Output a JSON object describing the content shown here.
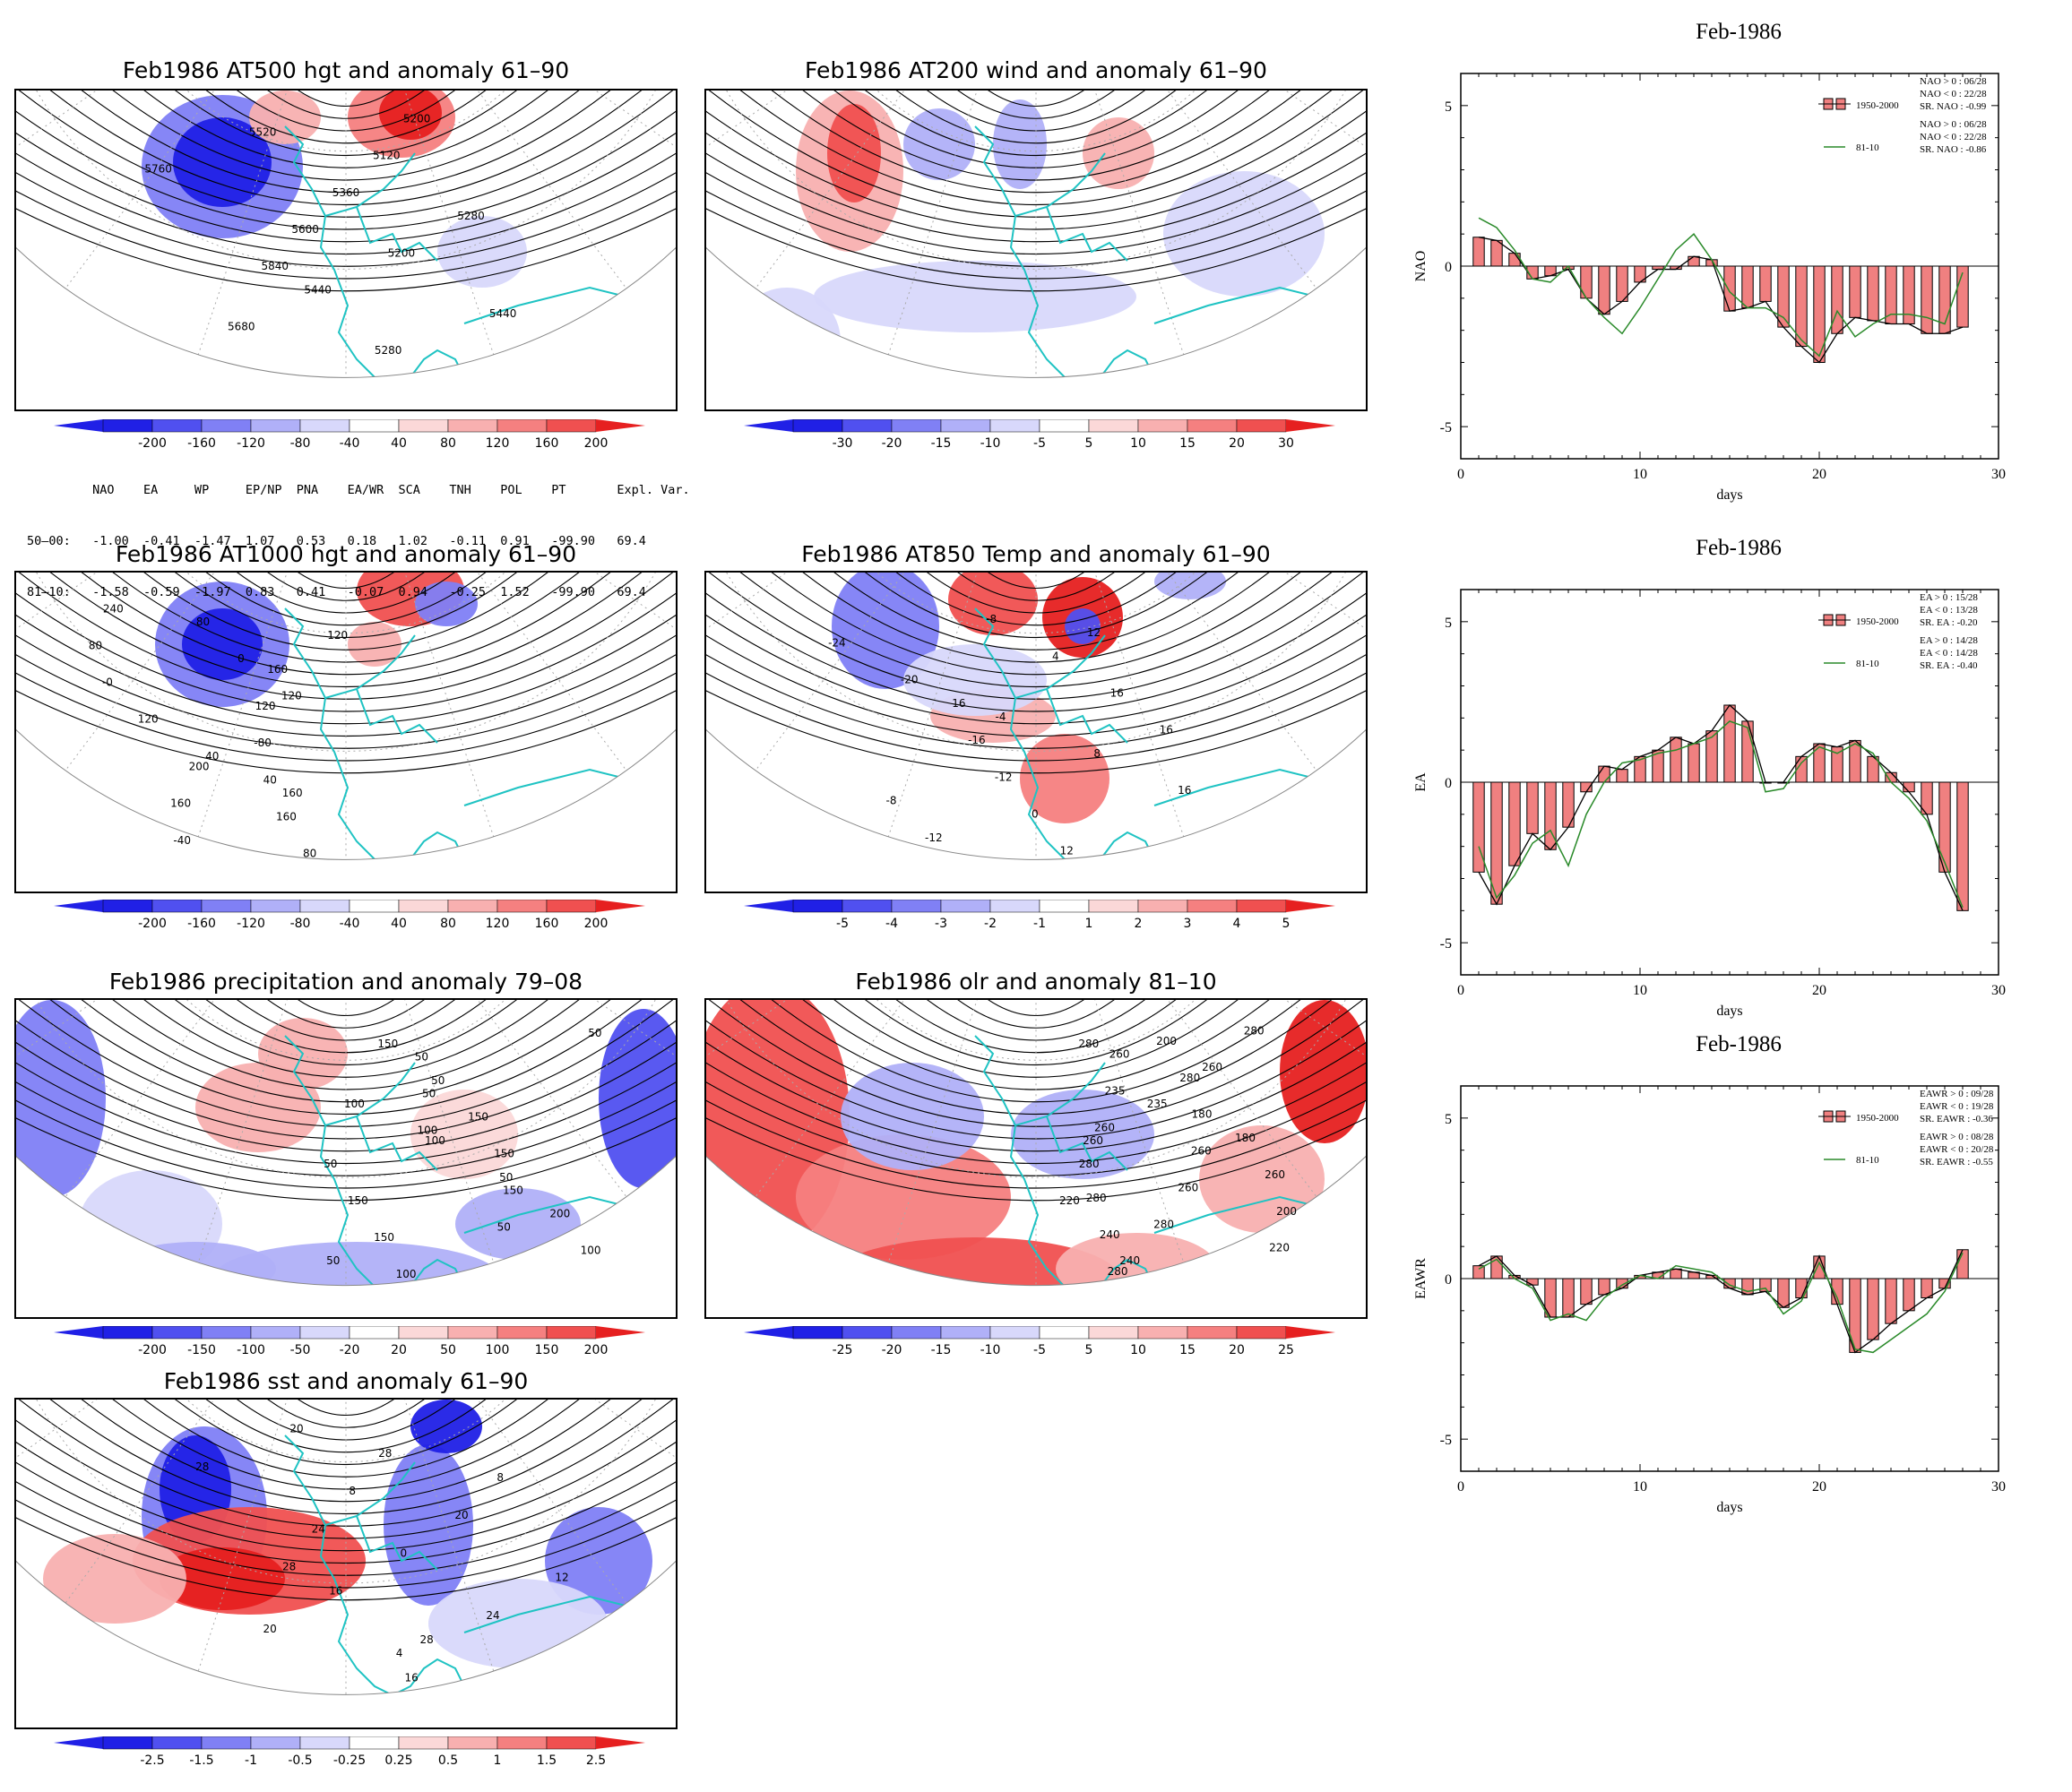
{
  "maps": [
    {
      "id": "m500",
      "title": "Feb1986 AT500 hgt and anomaly 61–90",
      "colorbar": [
        "-200",
        "-160",
        "-120",
        "-80",
        "-40",
        "40",
        "80",
        "120",
        "160",
        "200"
      ],
      "contour_labels": [
        "5200",
        "5280",
        "5440",
        "5120",
        "5200",
        "5280",
        "5360",
        "5440",
        "5520",
        "5600",
        "5680",
        "5760",
        "5840"
      ]
    },
    {
      "id": "m200",
      "title": "Feb1986 AT200 wind and anomaly 61–90",
      "colorbar": [
        "-30",
        "-20",
        "-15",
        "-10",
        "-5",
        "5",
        "10",
        "15",
        "20",
        "30"
      ],
      "contour_labels": []
    },
    {
      "id": "m1000",
      "title": "Feb1986 AT1000 hgt and anomaly 61–90",
      "colorbar": [
        "-200",
        "-160",
        "-120",
        "-80",
        "-40",
        "40",
        "80",
        "120",
        "160",
        "200"
      ],
      "contour_labels": [
        "160",
        "200",
        "240",
        "120",
        "160",
        "80",
        "-80",
        "-40",
        "-0",
        "40",
        "80",
        "120",
        "160",
        "0",
        "40",
        "80",
        "120",
        "160",
        "120"
      ]
    },
    {
      "id": "m850",
      "title": "Feb1986 AT850 Temp and anomaly 61–90",
      "colorbar": [
        "-5",
        "-4",
        "-3",
        "-2",
        "-1",
        "1",
        "2",
        "3",
        "4",
        "5"
      ],
      "contour_labels": [
        "16",
        "-8",
        "-24",
        "-16",
        "-12",
        "-20",
        "-12",
        "-8",
        "-4",
        "0",
        "4",
        "8",
        "12",
        "16",
        "16",
        "12",
        "16"
      ]
    },
    {
      "id": "mprec",
      "title": "Feb1986 precipitation and anomaly 79–08",
      "colorbar": [
        "-200",
        "-150",
        "-100",
        "-50",
        "-20",
        "20",
        "50",
        "100",
        "150",
        "200"
      ],
      "contour_labels": [
        "50",
        "50",
        "100",
        "150",
        "150",
        "100",
        "150",
        "50",
        "50",
        "100",
        "150",
        "200",
        "50",
        "150",
        "100",
        "50",
        "150",
        "50",
        "100",
        "50"
      ]
    },
    {
      "id": "molr",
      "title": "Feb1986 olr and anomaly 81–10",
      "colorbar": [
        "-25",
        "-20",
        "-15",
        "-10",
        "-5",
        "5",
        "10",
        "15",
        "20",
        "25"
      ],
      "contour_labels": [
        "280",
        "200",
        "180",
        "240",
        "280",
        "260",
        "280",
        "180",
        "200",
        "260",
        "260",
        "220",
        "235",
        "260",
        "280",
        "260",
        "280",
        "260",
        "280",
        "240",
        "235",
        "220",
        "280",
        "260"
      ]
    },
    {
      "id": "msst",
      "title": "Feb1986 sst and anomaly 61–90",
      "colorbar": [
        "-2.5",
        "-1.5",
        "-1",
        "-0.5",
        "-0.25",
        "0.25",
        "0.5",
        "1",
        "1.5",
        "2.5"
      ],
      "contour_labels": [
        "28",
        "8",
        "12",
        "16",
        "20",
        "24",
        "28",
        "0",
        "4",
        "8",
        "16",
        "20",
        "24",
        "20",
        "28",
        "28"
      ]
    }
  ],
  "eof_table": {
    "header": [
      "NAO",
      "EA",
      "WP",
      "EP/NP",
      "PNA",
      "EA/WR",
      "SCA",
      "TNH",
      "POL",
      "PT",
      "Expl. Var."
    ],
    "rows": [
      {
        "label": "50–00:",
        "values": [
          "-1.00",
          "-0.41",
          "-1.47",
          "1.07",
          "0.53",
          "0.18",
          "1.02",
          "-0.11",
          "0.91",
          "-99.90",
          "69.4"
        ]
      },
      {
        "label": "81–10:",
        "values": [
          "-1.58",
          "-0.59",
          "-1.97",
          "0.83",
          "0.41",
          "-0.07",
          "0.94",
          "-0.25",
          "1.52",
          "-99.90",
          "69.4"
        ]
      }
    ]
  },
  "chart_data": [
    {
      "type": "bar",
      "title": "Feb-1986",
      "ylabel": "NAO",
      "xlabel": "days",
      "xlim": [
        0,
        30
      ],
      "ylim": [
        -6,
        6
      ],
      "xticks": [
        "0",
        "10",
        "20",
        "30"
      ],
      "yticks": [
        "5",
        "0",
        "-5"
      ],
      "legend": [
        {
          "name": "1950-2000",
          "lines": [
            "NAO > 0 : 06/28",
            "NAO < 0 : 22/28",
            "SR. NAO : -0.99"
          ]
        },
        {
          "name": "81-10",
          "lines": [
            "NAO > 0 : 06/28",
            "NAO < 0 : 22/28",
            "SR. NAO : -0.86"
          ]
        }
      ],
      "days": [
        1,
        2,
        3,
        4,
        5,
        6,
        7,
        8,
        9,
        10,
        11,
        12,
        13,
        14,
        15,
        16,
        17,
        18,
        19,
        20,
        21,
        22,
        23,
        24,
        25,
        26,
        27,
        28
      ],
      "bars": [
        0.9,
        0.8,
        0.4,
        -0.4,
        -0.3,
        -0.1,
        -1.0,
        -1.5,
        -1.1,
        -0.5,
        -0.1,
        -0.1,
        0.3,
        0.2,
        -1.4,
        -1.3,
        -1.1,
        -1.9,
        -2.5,
        -3.0,
        -2.1,
        -1.6,
        -1.7,
        -1.8,
        -1.8,
        -2.1,
        -2.1,
        -1.9
      ],
      "line": [
        1.5,
        1.2,
        0.5,
        -0.4,
        -0.5,
        0.0,
        -1.0,
        -1.6,
        -2.1,
        -1.3,
        -0.4,
        0.5,
        1.0,
        0.2,
        -0.8,
        -1.3,
        -1.3,
        -1.6,
        -2.3,
        -2.8,
        -1.4,
        -2.2,
        -1.8,
        -1.5,
        -1.5,
        -1.6,
        -1.8,
        -0.2
      ]
    },
    {
      "type": "bar",
      "title": "Feb-1986",
      "ylabel": "EA",
      "xlabel": "days",
      "xlim": [
        0,
        30
      ],
      "ylim": [
        -6,
        6
      ],
      "xticks": [
        "0",
        "10",
        "20",
        "30"
      ],
      "yticks": [
        "5",
        "0",
        "-5"
      ],
      "legend": [
        {
          "name": "1950-2000",
          "lines": [
            "EA > 0 : 15/28",
            "EA < 0 : 13/28",
            "SR. EA : -0.20"
          ]
        },
        {
          "name": "81-10",
          "lines": [
            "EA > 0 : 14/28",
            "EA < 0 : 14/28",
            "SR. EA : -0.40"
          ]
        }
      ],
      "days": [
        1,
        2,
        3,
        4,
        5,
        6,
        7,
        8,
        9,
        10,
        11,
        12,
        13,
        14,
        15,
        16,
        17,
        18,
        19,
        20,
        21,
        22,
        23,
        24,
        25,
        26,
        27,
        28
      ],
      "bars": [
        -2.8,
        -3.8,
        -2.6,
        -1.6,
        -2.1,
        -1.4,
        -0.3,
        0.5,
        0.4,
        0.8,
        1.0,
        1.4,
        1.2,
        1.6,
        2.4,
        1.9,
        0.0,
        0.0,
        0.8,
        1.2,
        1.1,
        1.3,
        0.8,
        0.3,
        -0.3,
        -1.0,
        -2.8,
        -4.0
      ],
      "line": [
        -2.0,
        -3.6,
        -2.9,
        -1.9,
        -1.5,
        -2.6,
        -1.0,
        0.0,
        0.6,
        0.7,
        0.9,
        1.0,
        1.2,
        1.4,
        1.9,
        1.7,
        -0.3,
        -0.2,
        0.6,
        1.1,
        0.9,
        1.2,
        0.9,
        0.0,
        -0.5,
        -1.2,
        -2.5,
        -3.9
      ]
    },
    {
      "type": "bar",
      "title": "Feb-1986",
      "ylabel": "EAWR",
      "xlabel": "days",
      "xlim": [
        0,
        30
      ],
      "ylim": [
        -6,
        6
      ],
      "xticks": [
        "0",
        "10",
        "20",
        "30"
      ],
      "yticks": [
        "5",
        "0",
        "-5"
      ],
      "legend": [
        {
          "name": "1950-2000",
          "lines": [
            "EAWR > 0 : 09/28",
            "EAWR < 0 : 19/28",
            "SR. EAWR : -0.36"
          ]
        },
        {
          "name": "81-10",
          "lines": [
            "EAWR > 0 : 08/28",
            "EAWR < 0 : 20/28",
            "SR. EAWR : -0.55"
          ]
        }
      ],
      "days": [
        1,
        2,
        3,
        4,
        5,
        6,
        7,
        8,
        9,
        10,
        11,
        12,
        13,
        14,
        15,
        16,
        17,
        18,
        19,
        20,
        21,
        22,
        23,
        24,
        25,
        26,
        27,
        28
      ],
      "bars": [
        0.4,
        0.7,
        0.1,
        -0.2,
        -1.2,
        -1.2,
        -0.8,
        -0.5,
        -0.3,
        0.1,
        0.2,
        0.3,
        0.2,
        0.1,
        -0.3,
        -0.5,
        -0.4,
        -0.9,
        -0.6,
        0.7,
        -0.8,
        -2.3,
        -1.9,
        -1.4,
        -1.0,
        -0.6,
        -0.3,
        0.9
      ],
      "line": [
        0.3,
        0.6,
        0.0,
        -0.3,
        -1.3,
        -1.1,
        -1.3,
        -0.6,
        -0.2,
        0.1,
        0.0,
        0.4,
        0.3,
        0.2,
        -0.2,
        -0.4,
        -0.3,
        -1.1,
        -0.7,
        0.5,
        -0.6,
        -2.2,
        -2.3,
        -1.9,
        -1.5,
        -1.1,
        -0.4,
        0.8
      ]
    }
  ],
  "colors": {
    "cyan": "#1fc3c3",
    "blue_palette": [
      "#2020e6",
      "#5050f0",
      "#8080f5",
      "#b0b0f8",
      "#d8d8fb"
    ],
    "red_palette": [
      "#fbd8d8",
      "#f8b0b0",
      "#f58080",
      "#f05050",
      "#e62020"
    ],
    "bar": "#f08080",
    "line": "#2a8a2a"
  }
}
